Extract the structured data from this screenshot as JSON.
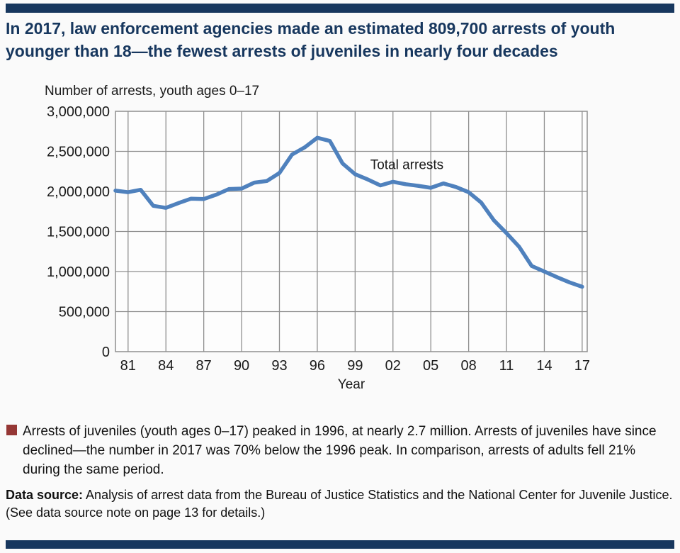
{
  "colors": {
    "navy": "#17375E",
    "line_blue": "#4F81BD",
    "grid_gray": "#8F8F8F",
    "bullet_red": "#953735",
    "text": "#1A1A1A"
  },
  "header": {
    "title_lines": [
      "In 2017, law enforcement agencies made an estimated 809,700 arrests of youth",
      "younger than 18—the fewest arrests of juveniles in nearly four decades"
    ]
  },
  "chart_data": {
    "type": "line",
    "title": "Number of arrests, youth ages 0–17",
    "xlabel": "Year",
    "series": [
      {
        "name": "Total arrests",
        "x": [
          1980,
          1981,
          1982,
          1983,
          1984,
          1985,
          1986,
          1987,
          1988,
          1989,
          1990,
          1991,
          1992,
          1993,
          1994,
          1995,
          1996,
          1997,
          1998,
          1999,
          2000,
          2001,
          2002,
          2003,
          2004,
          2005,
          2006,
          2007,
          2008,
          2009,
          2010,
          2011,
          2012,
          2013,
          2014,
          2015,
          2016,
          2017
        ],
        "values": [
          2010000,
          1990000,
          2020000,
          1820000,
          1795000,
          1855000,
          1910000,
          1905000,
          1960000,
          2030000,
          2035000,
          2110000,
          2130000,
          2230000,
          2460000,
          2550000,
          2670000,
          2630000,
          2350000,
          2215000,
          2150000,
          2075000,
          2120000,
          2090000,
          2070000,
          2045000,
          2100000,
          2055000,
          1990000,
          1860000,
          1640000,
          1480000,
          1310000,
          1070000,
          1000000,
          930000,
          865000,
          809700
        ]
      }
    ],
    "annotation": {
      "text": "Total arrests",
      "x": 2000.2,
      "y": 2340000
    },
    "xlim": [
      1980,
      2017.4
    ],
    "ylim": [
      0,
      3000000
    ],
    "ytick_step": 500000,
    "xticks": [
      1981,
      1984,
      1987,
      1990,
      1993,
      1996,
      1999,
      2002,
      2005,
      2008,
      2011,
      2014,
      2017
    ],
    "xtick_labels": [
      "81",
      "84",
      "87",
      "90",
      "93",
      "96",
      "99",
      "02",
      "05",
      "08",
      "11",
      "14",
      "17"
    ],
    "grid": true,
    "legend_position": "inline-annotation"
  },
  "bullet": {
    "text": "Arrests of juveniles (youth ages 0–17) peaked in 1996, at nearly 2.7 million. Arrests of juveniles have since declined—the number in 2017 was 70% below the 1996 peak. In comparison, arrests of adults fell 21% during the same period."
  },
  "datasource": {
    "label": "Data source:",
    "text": " Analysis of arrest data from the Bureau of Justice Statistics and the National Center for Juvenile Justice. (See data source note on page 13 for details.)"
  }
}
